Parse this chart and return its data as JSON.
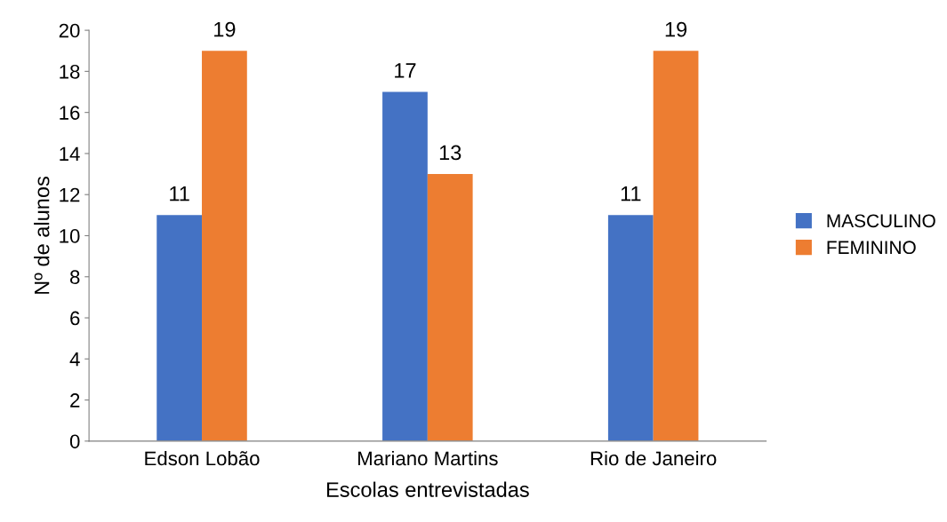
{
  "chart_data": {
    "type": "bar",
    "xlabel": "Escolas entrevistadas",
    "ylabel": "Nº de alunos",
    "categories": [
      "Edson Lobão",
      "Mariano Martins",
      "Rio de Janeiro"
    ],
    "series": [
      {
        "name": "MASCULINO",
        "color": "#4472c4",
        "values": [
          11,
          17,
          11
        ]
      },
      {
        "name": "FEMININO",
        "color": "#ed7d31",
        "values": [
          19,
          13,
          19
        ]
      }
    ],
    "ylim": [
      0,
      20
    ],
    "yticks": [
      0,
      2,
      4,
      6,
      8,
      10,
      12,
      14,
      16,
      18,
      20
    ],
    "grid": false,
    "legend": "right",
    "data_labels": true
  }
}
